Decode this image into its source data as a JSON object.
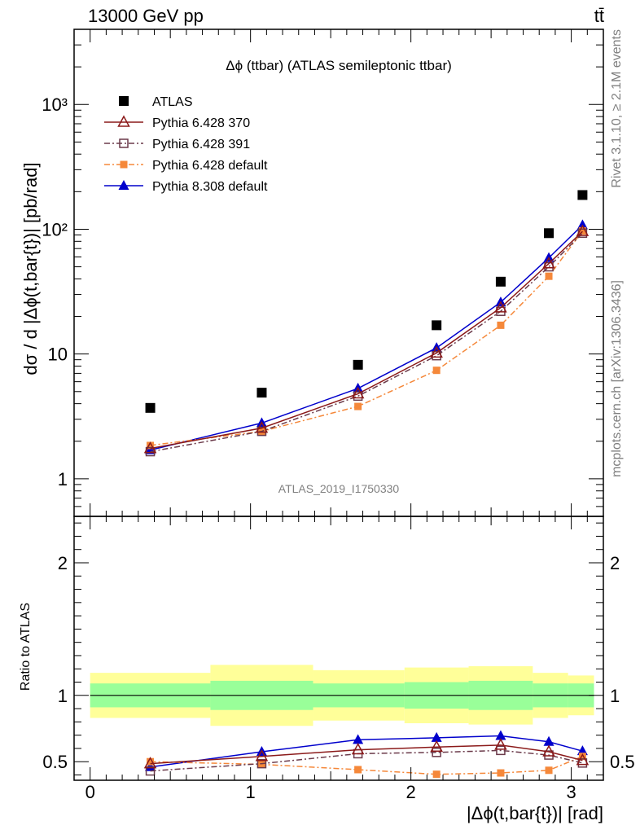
{
  "header": {
    "left": "13000 GeV pp",
    "right": "tt̄"
  },
  "side_labels": {
    "rivet": "Rivet 3.1.10, ≥ 2.1M events",
    "source": "mcplots.cern.ch [arXiv:1306.3436]"
  },
  "colors": {
    "atlas": "#000000",
    "py6_370": "#8b1a1a",
    "py6_391": "#6b3a4a",
    "py6_default": "#f5883a",
    "py8_default": "#0000cc",
    "band_inner": "#99ff99",
    "band_outer": "#ffff99"
  },
  "chart_data": [
    {
      "type": "scatter",
      "panel": "main",
      "title": "Δϕ (ttbar) (ATLAS semileptonic ttbar)",
      "watermark": "ATLAS_2019_I1750330",
      "ylabel": "dσ / d |Δϕ(t,bar{t})| [pb/rad]",
      "yscale": "log",
      "ylim": [
        0.5,
        4000
      ],
      "xlim": [
        -0.1,
        3.2
      ],
      "ytick_labels": [
        "1",
        "10",
        "10²",
        "10³"
      ],
      "x": [
        0.375,
        1.07,
        1.67,
        2.16,
        2.56,
        2.86,
        3.07
      ],
      "series": [
        {
          "name": "ATLAS",
          "marker": "square-filled",
          "line": "none",
          "values": [
            3.7,
            4.9,
            8.2,
            17,
            38,
            93,
            188
          ]
        },
        {
          "name": "Pythia 6.428 370",
          "marker": "triangle-open",
          "line": "solid",
          "values": [
            1.75,
            2.55,
            4.8,
            10.2,
            23.5,
            53,
            96
          ]
        },
        {
          "name": "Pythia 6.428 391",
          "marker": "square-open",
          "line": "dashdot",
          "values": [
            1.65,
            2.4,
            4.6,
            9.7,
            22,
            50,
            93
          ]
        },
        {
          "name": "Pythia 6.428 default",
          "marker": "square-filled-small",
          "line": "dashdot",
          "values": [
            1.85,
            2.4,
            3.8,
            7.4,
            17,
            42,
            97
          ]
        },
        {
          "name": "Pythia 8.308 default",
          "marker": "triangle-filled",
          "line": "solid",
          "values": [
            1.7,
            2.8,
            5.3,
            11.2,
            26,
            59,
            108
          ]
        }
      ]
    },
    {
      "type": "line",
      "panel": "ratio",
      "ylabel": "Ratio to ATLAS",
      "xlabel": "|Δϕ(t,bar{t})| [rad]",
      "ylim": [
        0.36,
        2.35
      ],
      "xlim": [
        -0.1,
        3.2
      ],
      "xtick_labels": [
        "0",
        "1",
        "2",
        "3"
      ],
      "ytick_labels": [
        "0.5",
        "1",
        "2"
      ],
      "bins": [
        {
          "lo": 0.0,
          "hi": 0.75,
          "inner": [
            0.91,
            1.09
          ],
          "outer": [
            0.83,
            1.17
          ]
        },
        {
          "lo": 0.75,
          "hi": 1.39,
          "inner": [
            0.89,
            1.11
          ],
          "outer": [
            0.77,
            1.23
          ]
        },
        {
          "lo": 1.39,
          "hi": 1.96,
          "inner": [
            0.91,
            1.09
          ],
          "outer": [
            0.81,
            1.19
          ]
        },
        {
          "lo": 1.96,
          "hi": 2.36,
          "inner": [
            0.9,
            1.1
          ],
          "outer": [
            0.79,
            1.21
          ]
        },
        {
          "lo": 2.36,
          "hi": 2.76,
          "inner": [
            0.89,
            1.11
          ],
          "outer": [
            0.78,
            1.22
          ]
        },
        {
          "lo": 2.76,
          "hi": 2.98,
          "inner": [
            0.91,
            1.09
          ],
          "outer": [
            0.83,
            1.17
          ]
        },
        {
          "lo": 2.98,
          "hi": 3.1416,
          "inner": [
            0.91,
            1.09
          ],
          "outer": [
            0.85,
            1.15
          ]
        }
      ],
      "x": [
        0.375,
        1.07,
        1.67,
        2.16,
        2.56,
        2.86,
        3.07
      ],
      "series": [
        {
          "name": "Pythia 6.428 370",
          "values": [
            0.485,
            0.54,
            0.59,
            0.61,
            0.625,
            0.575,
            0.51
          ]
        },
        {
          "name": "Pythia 6.428 391",
          "values": [
            0.43,
            0.485,
            0.56,
            0.57,
            0.585,
            0.55,
            0.49
          ]
        },
        {
          "name": "Pythia 6.428 default",
          "values": [
            0.5,
            0.48,
            0.44,
            0.405,
            0.415,
            0.435,
            0.54
          ]
        },
        {
          "name": "Pythia 8.308 default",
          "values": [
            0.46,
            0.575,
            0.665,
            0.68,
            0.695,
            0.65,
            0.58
          ]
        }
      ]
    }
  ]
}
